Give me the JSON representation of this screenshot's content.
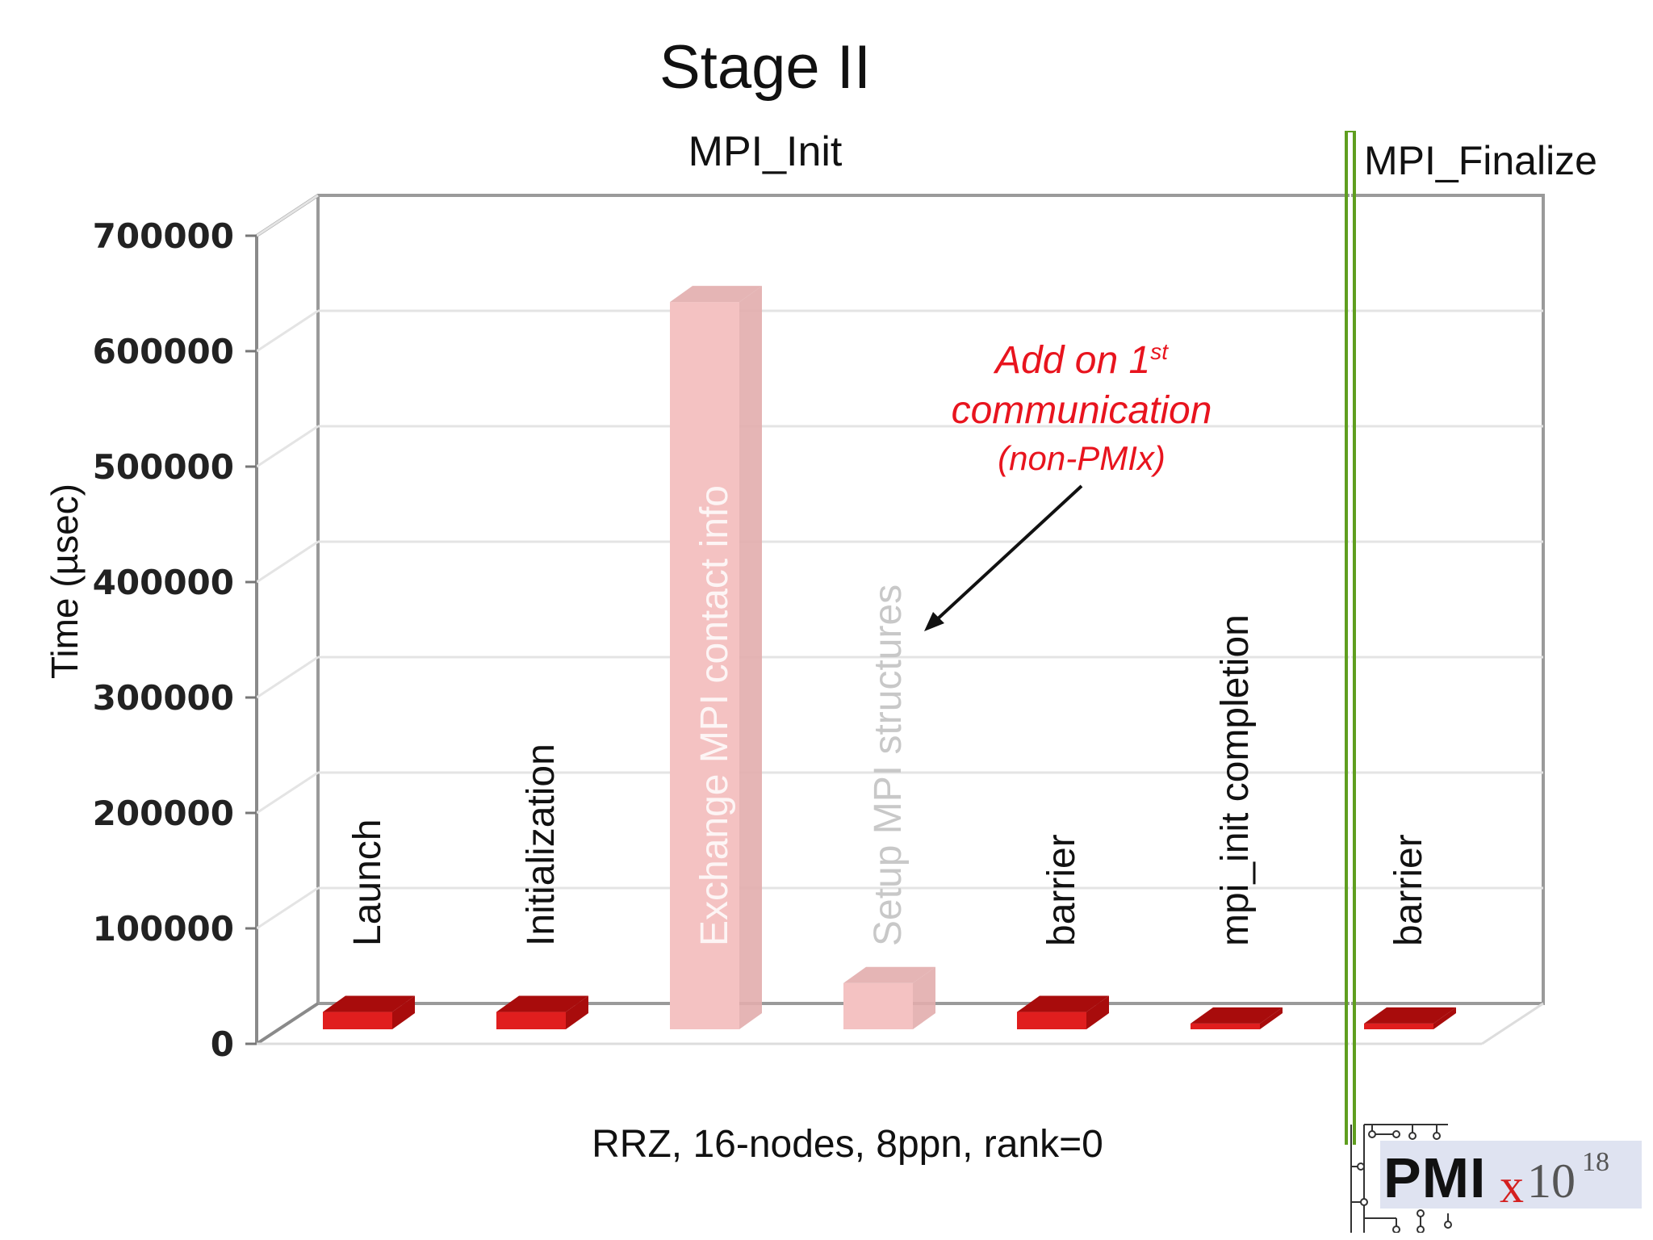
{
  "slide": {
    "title": "Stage II",
    "section_left": "MPI_Init",
    "section_right": "MPI_Finalize",
    "footnote": "RRZ, 16-nodes, 8ppn, rank=0"
  },
  "annotation": {
    "line1": "Add on 1",
    "line1_sup": "st",
    "line2": "communication",
    "line3": "(non-PMIx)"
  },
  "logo": {
    "text": "PMIx",
    "suffix_base": "10",
    "suffix_exp": "18"
  },
  "chart_data": {
    "type": "bar",
    "title": "Stage II",
    "ylabel": "Time (µsec)",
    "ylim": [
      0,
      700000
    ],
    "yticks": [
      "0",
      "100000",
      "200000",
      "300000",
      "400000",
      "500000",
      "600000",
      "700000"
    ],
    "grid": true,
    "categories": [
      "Launch",
      "Initialization",
      "Exchange MPI contact info",
      "Setup MPI structures",
      "barrier",
      "mpi_init completion",
      "barrier"
    ],
    "values": [
      15000,
      15000,
      630000,
      40000,
      15000,
      5000,
      5000
    ],
    "highlight": [
      false,
      false,
      true,
      true,
      false,
      false,
      false
    ],
    "colors": {
      "bar": "#e01e1e",
      "bar_dark": "#a80c0c",
      "highlight_bar": "#f4c2c2",
      "highlight_dark": "#e2adad",
      "divider": "#5f9e1f",
      "annotation": "#e8141e"
    }
  }
}
